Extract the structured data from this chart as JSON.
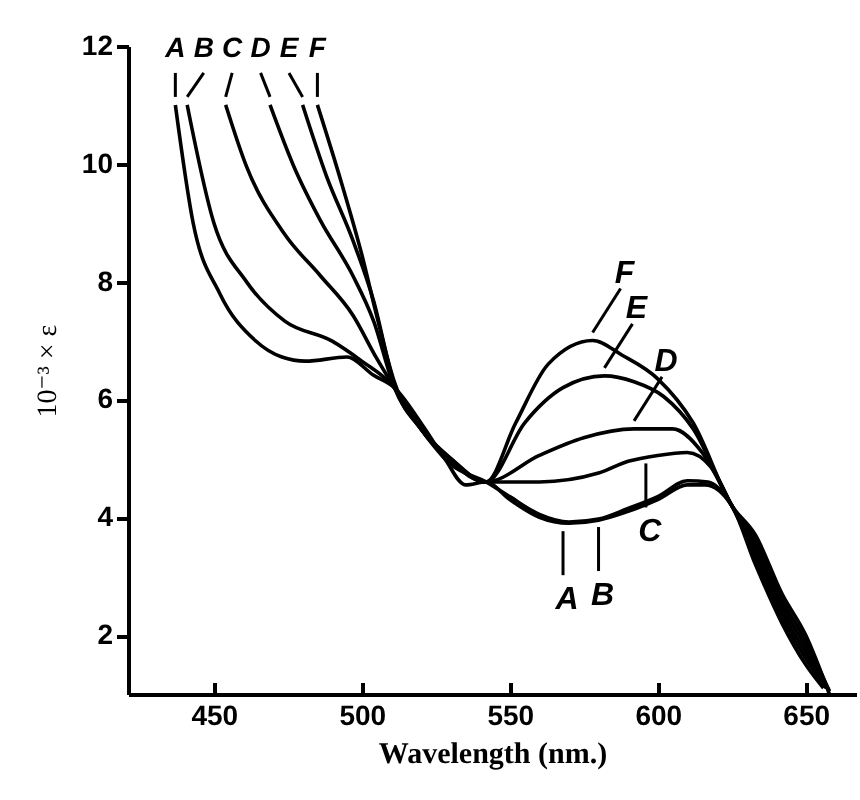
{
  "chart_data": {
    "type": "line",
    "xlabel": "Wavelength (nm.)",
    "ylabel": "10⁻³ × ε",
    "xlim": [
      421,
      667
    ],
    "ylim": [
      1,
      12
    ],
    "xticks": [
      450,
      500,
      550,
      600,
      650
    ],
    "yticks": [
      2,
      4,
      6,
      8,
      10,
      12
    ],
    "grid": false,
    "legend": false,
    "marker": "none",
    "line_style": "solid",
    "series": [
      {
        "name": "A",
        "color": "#000000",
        "x": [
          437,
          443,
          452,
          464,
          473,
          481,
          495,
          504,
          511,
          520,
          528,
          535,
          542,
          550,
          560,
          570,
          580,
          590,
          600,
          610,
          616,
          625,
          633,
          642,
          650,
          656
        ],
        "values": [
          11.0,
          9.0,
          7.8,
          7.0,
          6.72,
          6.65,
          6.72,
          6.41,
          6.2,
          5.6,
          5.0,
          4.55,
          4.6,
          4.3,
          4.0,
          3.9,
          3.95,
          4.1,
          4.3,
          4.55,
          4.55,
          4.2,
          3.2,
          2.2,
          1.5,
          1.1
        ]
      },
      {
        "name": "B",
        "color": "#000000",
        "x": [
          441,
          450,
          461,
          474,
          490,
          500,
          511,
          520,
          530,
          542,
          550,
          560,
          570,
          580,
          590,
          600,
          610,
          617,
          625,
          633,
          642,
          650,
          657
        ],
        "values": [
          11.0,
          9.0,
          8.0,
          7.33,
          6.99,
          6.65,
          6.2,
          5.5,
          4.9,
          4.6,
          4.35,
          4.05,
          3.92,
          3.97,
          4.15,
          4.35,
          4.62,
          4.6,
          4.2,
          3.3,
          2.3,
          1.6,
          1.1
        ]
      },
      {
        "name": "C",
        "color": "#000000",
        "x": [
          454,
          461,
          474,
          486,
          497,
          505,
          511,
          520,
          530,
          542,
          560,
          580,
          590,
          600,
          610,
          618,
          625,
          633,
          642,
          650,
          657
        ],
        "values": [
          11.0,
          9.96,
          8.8,
          8.1,
          7.43,
          6.7,
          6.2,
          5.5,
          4.95,
          4.6,
          4.6,
          4.75,
          4.95,
          5.05,
          5.1,
          4.85,
          4.2,
          3.4,
          2.4,
          1.7,
          1.1
        ]
      },
      {
        "name": "D",
        "color": "#000000",
        "x": [
          469,
          477,
          486,
          497,
          504,
          511,
          520,
          530,
          542,
          560,
          575,
          592,
          605,
          615,
          625,
          633,
          642,
          650,
          658
        ],
        "values": [
          11.0,
          9.96,
          9.04,
          8.1,
          7.33,
          6.2,
          5.5,
          5.0,
          4.6,
          5.05,
          5.35,
          5.5,
          5.5,
          5.1,
          4.2,
          3.5,
          2.5,
          1.8,
          1.05
        ]
      },
      {
        "name": "E",
        "color": "#000000",
        "x": [
          480,
          488,
          497,
          504,
          511,
          520,
          530,
          542,
          555,
          568,
          582,
          592,
          602,
          612,
          625,
          633,
          642,
          650,
          658
        ],
        "values": [
          11.0,
          9.8,
          8.7,
          7.67,
          6.25,
          5.5,
          5.0,
          4.6,
          5.6,
          6.2,
          6.4,
          6.3,
          6.05,
          5.5,
          4.2,
          3.6,
          2.6,
          1.9,
          1.05
        ]
      },
      {
        "name": "F",
        "color": "#000000",
        "x": [
          485,
          493,
          500,
          505,
          511,
          520,
          530,
          542,
          552,
          563,
          578,
          588,
          600,
          612,
          625,
          633,
          642,
          650,
          658
        ],
        "values": [
          11.0,
          9.7,
          8.46,
          7.43,
          6.3,
          5.5,
          4.95,
          4.6,
          5.6,
          6.6,
          7.0,
          6.75,
          6.35,
          5.6,
          4.2,
          3.7,
          2.7,
          2.0,
          1.0
        ]
      }
    ],
    "annotations": [
      {
        "text": "A",
        "x": 568,
        "y": 3.9
      },
      {
        "text": "B",
        "x": 580,
        "y": 3.97
      },
      {
        "text": "C",
        "x": 596,
        "y": 5.05
      },
      {
        "text": "D",
        "x": 592,
        "y": 5.5
      },
      {
        "text": "E",
        "x": 582,
        "y": 6.4
      },
      {
        "text": "F",
        "x": 578,
        "y": 7.0
      }
    ]
  }
}
